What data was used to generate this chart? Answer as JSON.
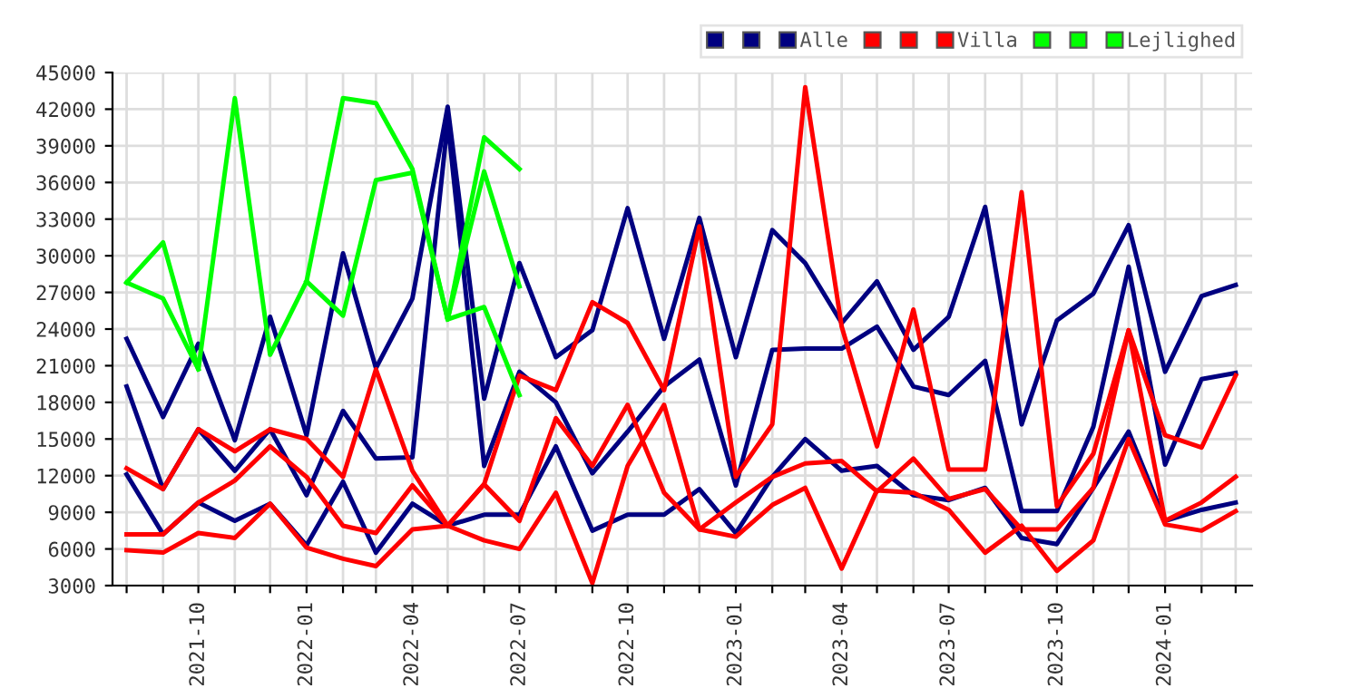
{
  "chart_data": {
    "type": "line",
    "x": [
      "2021-08",
      "2021-09",
      "2021-10",
      "2021-11",
      "2021-12",
      "2022-01",
      "2022-02",
      "2022-03",
      "2022-04",
      "2022-05",
      "2022-06",
      "2022-07",
      "2022-08",
      "2022-09",
      "2022-10",
      "2022-11",
      "2022-12",
      "2023-01",
      "2023-02",
      "2023-03",
      "2023-04",
      "2023-05",
      "2023-06",
      "2023-07",
      "2023-08",
      "2023-09",
      "2023-10",
      "2023-11",
      "2023-12",
      "2024-01",
      "2024-02",
      "2024-03"
    ],
    "series": [
      {
        "color": "#000080",
        "values": [
          23200,
          16800,
          22800,
          14900,
          25000,
          15300,
          30200,
          20800,
          26500,
          42200,
          18300,
          29400,
          21700,
          23900,
          33900,
          23200,
          33100,
          21700,
          32100,
          29400,
          24500,
          27900,
          22300,
          25000,
          34000,
          16200,
          24700,
          26900,
          32500,
          20500,
          26700,
          27600
        ]
      },
      {
        "color": "#000080",
        "values": [
          19300,
          10900,
          15800,
          12400,
          15800,
          10400,
          17300,
          13400,
          13500,
          41000,
          12800,
          20500,
          18000,
          12200,
          15600,
          19300,
          21500,
          11200,
          22300,
          22400,
          22400,
          24200,
          19300,
          18600,
          21400,
          9100,
          9100,
          16000,
          29100,
          12900,
          19900,
          20400
        ]
      },
      {
        "name": "Alle",
        "color": "#000080",
        "values": [
          12100,
          7200,
          9800,
          8300,
          9700,
          6300,
          11500,
          5700,
          9700,
          7900,
          8800,
          8800,
          14400,
          7500,
          8800,
          8800,
          10900,
          7300,
          11900,
          15000,
          12400,
          12800,
          10400,
          10000,
          11000,
          6900,
          6400,
          11000,
          15600,
          8300,
          9200,
          9800
        ]
      },
      {
        "color": "#ff0000",
        "values": [
          12600,
          10900,
          15800,
          14000,
          15800,
          15000,
          11900,
          20700,
          12400,
          7900,
          11300,
          20200,
          19000,
          26200,
          24500,
          19000,
          32400,
          11900,
          16200,
          43800,
          24200,
          14400,
          25600,
          12500,
          12500,
          35200,
          9500,
          13800,
          23900,
          15300,
          14300,
          20200
        ]
      },
      {
        "color": "#ff0000",
        "values": [
          7200,
          7200,
          9800,
          11600,
          14400,
          11900,
          7900,
          7300,
          11200,
          7900,
          11300,
          8300,
          16700,
          12800,
          17800,
          10600,
          7600,
          9800,
          11900,
          13000,
          13200,
          10700,
          13400,
          10100,
          10900,
          7600,
          7600,
          11000,
          23900,
          8300,
          9800,
          11900
        ]
      },
      {
        "name": "Villa",
        "color": "#ff0000",
        "values": [
          5900,
          5700,
          7300,
          6900,
          9700,
          6100,
          5200,
          4600,
          7600,
          7900,
          6700,
          6000,
          10600,
          3200,
          12800,
          17800,
          7600,
          7000,
          9600,
          11000,
          4400,
          10800,
          10600,
          9200,
          5700,
          7900,
          4200,
          6700,
          15000,
          8000,
          7500,
          9100
        ]
      },
      {
        "color": "#00ff00",
        "values": [
          27800,
          31100,
          20700,
          42900,
          21900,
          27900,
          42900,
          42500,
          37100,
          24800,
          39700,
          37100,
          null,
          null,
          null,
          null,
          null,
          null,
          null,
          null,
          null,
          null,
          null,
          null,
          null,
          null,
          null,
          null,
          null,
          null,
          null,
          null
        ]
      },
      {
        "color": "#00ff00",
        "values": [
          27800,
          26500,
          20700,
          null,
          null,
          27900,
          25100,
          36200,
          36800,
          24800,
          36900,
          27500,
          null,
          null,
          null,
          null,
          null,
          null,
          null,
          null,
          null,
          null,
          null,
          null,
          null,
          null,
          null,
          null,
          null,
          null,
          null,
          null
        ]
      },
      {
        "name": "Lejlighed",
        "color": "#00ff00",
        "values": [
          null,
          null,
          null,
          null,
          null,
          null,
          null,
          null,
          null,
          24800,
          25800,
          18600,
          null,
          null,
          null,
          null,
          null,
          null,
          null,
          null,
          null,
          null,
          null,
          null,
          null,
          null,
          null,
          null,
          null,
          null,
          null,
          null
        ]
      }
    ],
    "xlim": [
      "2021-07-20",
      "2024-03-15"
    ],
    "xticks": [
      {
        "value": "2021-08",
        "label": null
      },
      {
        "value": "2021-09",
        "label": null
      },
      "2021-10",
      {
        "value": "2021-11",
        "label": null
      },
      {
        "value": "2021-12",
        "label": null
      },
      "2022-01",
      {
        "value": "2022-02",
        "label": null
      },
      {
        "value": "2022-03",
        "label": null
      },
      "2022-04",
      {
        "value": "2022-05",
        "label": null
      },
      {
        "value": "2022-06",
        "label": null
      },
      "2022-07",
      {
        "value": "2022-08",
        "label": null
      },
      {
        "value": "2022-09",
        "label": null
      },
      "2022-10",
      {
        "value": "2022-11",
        "label": null
      },
      {
        "value": "2022-12",
        "label": null
      },
      "2023-01",
      {
        "value": "2023-02",
        "label": null
      },
      {
        "value": "2023-03",
        "label": null
      },
      "2023-04",
      {
        "value": "2023-05",
        "label": null
      },
      {
        "value": "2023-06",
        "label": null
      },
      "2023-07",
      {
        "value": "2023-08",
        "label": null
      },
      {
        "value": "2023-09",
        "label": null
      },
      "2023-10",
      {
        "value": "2023-11",
        "label": null
      },
      {
        "value": "2023-12",
        "label": null
      },
      "2024-01",
      {
        "value": "2024-02",
        "label": null
      },
      {
        "value": "2024-03",
        "label": null
      }
    ],
    "ylim": [
      3000,
      45000
    ],
    "yticks": [
      3000,
      6000,
      9000,
      12000,
      15000,
      18000,
      21000,
      24000,
      27000,
      30000,
      33000,
      36000,
      39000,
      42000,
      45000
    ],
    "grid": true,
    "legend": "top right",
    "marker": "none",
    "line_style": "solid"
  }
}
